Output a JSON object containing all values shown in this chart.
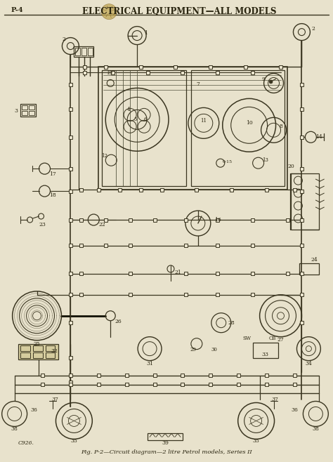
{
  "title": "ELECTRICAL EQUIPMENT—ALL MODELS",
  "page_label": "P-4",
  "caption": "Fig. P-2—Circuit diagram—2 litre Petrol models, Series II",
  "catalog_no": "C926.",
  "bg_color": "#e8e2cc",
  "line_color": "#3a3520",
  "text_color": "#2a2510",
  "title_font_size": 8.5,
  "caption_font_size": 6.0,
  "page_label_font_size": 7,
  "fig_width": 4.74,
  "fig_height": 6.58,
  "dpi": 100,
  "stamp_color": "#c0a855",
  "stamp_ec": "#907030"
}
